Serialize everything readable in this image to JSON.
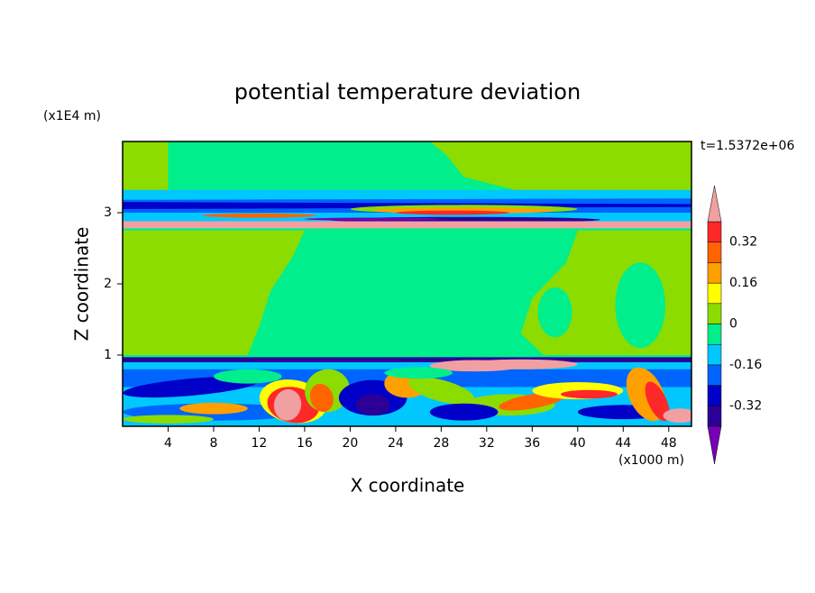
{
  "chart_data": {
    "type": "contour",
    "title": "potential temperature deviation",
    "xlabel": "X coordinate",
    "ylabel": "Z coordinate",
    "xunit": "(x1000 m)",
    "yunit": "(x1E4 m)",
    "annotation": "t=1.5372e+06",
    "xlim": [
      0,
      50
    ],
    "xticks": [
      4,
      8,
      12,
      16,
      20,
      24,
      28,
      32,
      36,
      40,
      44,
      48
    ],
    "ylim": [
      0,
      4
    ],
    "yticks": [
      1,
      2,
      3
    ],
    "colorbar": {
      "levels": [
        -0.4,
        -0.32,
        -0.24,
        -0.16,
        -0.08,
        0,
        0.08,
        0.16,
        0.24,
        0.32,
        0.4
      ],
      "colors": [
        "#7800b4",
        "#2c0096",
        "#0000c8",
        "#0064ff",
        "#00c8ff",
        "#00ee8c",
        "#8cdc00",
        "#ffff00",
        "#ffa000",
        "#ff6400",
        "#ff2828",
        "#f0a0a0"
      ],
      "ticks": [
        0.32,
        0.16,
        0,
        -0.16,
        -0.32
      ]
    }
  }
}
